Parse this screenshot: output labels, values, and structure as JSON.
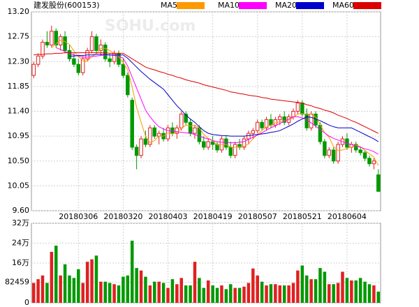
{
  "chart_data": {
    "type": "candlestick",
    "title": "建发股份(600153)",
    "watermark": "SOHU.com",
    "categories": [
      null,
      null,
      null,
      null,
      null,
      null,
      null,
      null,
      null,
      null,
      "20180306",
      null,
      null,
      null,
      null,
      null,
      null,
      null,
      null,
      null,
      "20180320",
      null,
      null,
      null,
      null,
      null,
      null,
      null,
      null,
      null,
      "20180403",
      null,
      null,
      null,
      null,
      null,
      null,
      null,
      null,
      null,
      "20180419",
      null,
      null,
      null,
      null,
      null,
      null,
      null,
      null,
      null,
      "20180507",
      null,
      null,
      null,
      null,
      null,
      null,
      null,
      null,
      null,
      "20180521",
      null,
      null,
      null,
      null,
      null,
      null,
      null,
      null,
      null,
      "20180604",
      null,
      null,
      null,
      null,
      null,
      null,
      null
    ],
    "open": [
      12.05,
      12.25,
      12.4,
      12.65,
      12.6,
      12.85,
      12.6,
      12.75,
      12.5,
      12.35,
      12.25,
      12.1,
      12.35,
      12.5,
      12.75,
      12.5,
      12.6,
      12.35,
      12.3,
      12.45,
      12.25,
      12.05,
      11.6,
      10.75,
      10.6,
      10.9,
      10.8,
      11.1,
      10.95,
      11.0,
      10.9,
      11.1,
      11.0,
      11.1,
      11.35,
      11.2,
      11.0,
      11.1,
      10.85,
      10.75,
      10.85,
      10.8,
      10.7,
      10.9,
      10.75,
      10.6,
      10.8,
      10.75,
      10.9,
      11.0,
      11.05,
      11.2,
      11.1,
      11.25,
      11.15,
      11.25,
      11.3,
      11.2,
      11.3,
      11.4,
      11.55,
      11.35,
      11.1,
      11.35,
      11.15,
      10.85,
      10.6,
      10.7,
      10.5,
      10.8,
      10.9,
      10.75,
      10.8,
      10.7,
      10.65,
      10.55,
      10.45,
      10.25
    ],
    "high": [
      12.3,
      12.45,
      12.7,
      12.85,
      12.95,
      12.9,
      12.8,
      12.85,
      12.6,
      12.45,
      12.35,
      12.4,
      12.55,
      12.85,
      12.8,
      12.7,
      12.65,
      12.45,
      12.5,
      12.5,
      12.35,
      12.1,
      11.65,
      10.8,
      10.95,
      11.05,
      11.15,
      11.15,
      11.05,
      11.1,
      11.15,
      11.2,
      11.15,
      11.4,
      11.4,
      11.25,
      11.15,
      11.15,
      10.95,
      10.9,
      10.95,
      10.85,
      10.95,
      10.95,
      10.85,
      10.85,
      10.9,
      10.95,
      11.05,
      11.1,
      11.25,
      11.25,
      11.3,
      11.35,
      11.3,
      11.35,
      11.4,
      11.35,
      11.45,
      11.6,
      11.6,
      11.45,
      11.4,
      11.4,
      11.2,
      10.9,
      10.75,
      10.75,
      10.85,
      10.95,
      11.0,
      10.85,
      10.85,
      10.75,
      10.7,
      10.6,
      10.55,
      10.35
    ],
    "low": [
      12.0,
      12.2,
      12.35,
      12.55,
      12.55,
      12.55,
      12.5,
      12.45,
      12.3,
      12.2,
      12.05,
      12.05,
      12.3,
      12.45,
      12.45,
      12.4,
      12.3,
      12.2,
      12.25,
      12.2,
      12.0,
      11.65,
      10.7,
      10.35,
      10.55,
      10.75,
      10.75,
      10.9,
      10.8,
      10.85,
      10.85,
      10.95,
      10.9,
      11.05,
      11.15,
      10.95,
      10.9,
      10.8,
      10.7,
      10.7,
      10.7,
      10.65,
      10.65,
      10.7,
      10.55,
      10.55,
      10.7,
      10.7,
      10.8,
      10.9,
      11.0,
      11.05,
      11.05,
      11.1,
      11.1,
      11.15,
      11.15,
      11.15,
      11.25,
      11.35,
      11.3,
      11.05,
      11.05,
      11.1,
      10.8,
      10.55,
      10.55,
      10.45,
      10.45,
      10.75,
      10.7,
      10.65,
      10.65,
      10.6,
      10.5,
      10.4,
      10.35,
      9.95
    ],
    "close": [
      12.25,
      12.4,
      12.65,
      12.6,
      12.85,
      12.6,
      12.75,
      12.5,
      12.35,
      12.25,
      12.1,
      12.35,
      12.5,
      12.75,
      12.5,
      12.6,
      12.35,
      12.3,
      12.45,
      12.25,
      12.05,
      11.7,
      10.75,
      10.6,
      10.9,
      10.8,
      11.1,
      10.95,
      11.0,
      10.9,
      11.1,
      11.0,
      11.1,
      11.35,
      11.2,
      11.0,
      11.1,
      10.85,
      10.75,
      10.85,
      10.8,
      10.7,
      10.9,
      10.75,
      10.6,
      10.8,
      10.75,
      10.9,
      11.0,
      11.05,
      11.2,
      11.1,
      11.25,
      11.15,
      11.25,
      11.3,
      11.2,
      11.3,
      11.4,
      11.55,
      11.35,
      11.1,
      11.35,
      11.15,
      10.85,
      10.6,
      10.7,
      10.5,
      10.8,
      10.9,
      10.75,
      10.8,
      10.7,
      10.65,
      10.55,
      10.45,
      10.5,
      9.95
    ],
    "up_color": "#e02020",
    "down_color": "#009900",
    "series": [
      {
        "name": "MA5",
        "color": "#ff9900",
        "values": [
          null,
          null,
          null,
          null,
          12.55,
          12.62,
          12.69,
          12.66,
          12.61,
          12.49,
          12.39,
          12.31,
          12.31,
          12.39,
          12.44,
          12.54,
          12.54,
          12.5,
          12.44,
          12.39,
          12.28,
          12.15,
          11.84,
          11.47,
          11.2,
          10.95,
          10.83,
          10.87,
          10.95,
          10.95,
          11.01,
          10.99,
          11.02,
          11.09,
          11.15,
          11.13,
          11.15,
          11.1,
          10.98,
          10.91,
          10.87,
          10.79,
          10.8,
          10.8,
          10.75,
          10.75,
          10.76,
          10.76,
          10.81,
          10.9,
          10.98,
          11.05,
          11.12,
          11.15,
          11.19,
          11.21,
          11.23,
          11.24,
          11.29,
          11.35,
          11.36,
          11.34,
          11.35,
          11.3,
          11.16,
          11.01,
          10.93,
          10.76,
          10.69,
          10.7,
          10.73,
          10.75,
          10.79,
          10.76,
          10.69,
          10.63,
          10.57,
          10.42
        ]
      },
      {
        "name": "MA10",
        "color": "#ff00ff",
        "values": [
          null,
          null,
          null,
          null,
          null,
          12.55,
          12.52,
          12.48,
          12.45,
          12.42,
          12.4,
          12.38,
          12.38,
          12.39,
          12.4,
          12.41,
          12.42,
          12.42,
          12.41,
          12.4,
          12.36,
          12.22,
          12.02,
          11.82,
          11.62,
          11.42,
          11.3,
          11.2,
          11.12,
          11.08,
          11.05,
          11.04,
          11.03,
          11.02,
          11.01,
          11.0,
          10.98,
          10.95,
          10.92,
          10.9,
          10.87,
          10.85,
          10.84,
          10.84,
          10.83,
          10.83,
          10.84,
          10.85,
          10.89,
          10.93,
          10.97,
          11.01,
          11.06,
          11.1,
          11.14,
          11.18,
          11.22,
          11.26,
          11.3,
          11.3,
          11.28,
          11.25,
          11.19,
          11.13,
          11.07,
          11.01,
          10.95,
          10.91,
          10.88,
          10.85,
          10.82,
          10.8,
          10.77,
          10.75,
          10.72,
          10.7,
          10.67,
          10.62
        ]
      },
      {
        "name": "MA20",
        "color": "#0000cc",
        "values": [
          null,
          null,
          null,
          null,
          null,
          null,
          null,
          null,
          12.4,
          12.4,
          12.41,
          12.41,
          12.42,
          12.42,
          12.43,
          12.43,
          12.43,
          12.42,
          12.42,
          12.42,
          12.42,
          12.36,
          12.28,
          12.2,
          12.12,
          12.05,
          11.98,
          11.92,
          11.86,
          11.8,
          11.7,
          11.6,
          11.5,
          11.42,
          11.33,
          11.26,
          11.2,
          11.12,
          11.05,
          11.0,
          10.98,
          10.97,
          10.96,
          10.96,
          10.95,
          10.95,
          10.95,
          10.95,
          10.96,
          10.97,
          10.98,
          10.99,
          11.0,
          11.02,
          11.03,
          11.05,
          11.09,
          11.13,
          11.17,
          11.22,
          11.26,
          11.3,
          11.29,
          11.26,
          11.23,
          11.19,
          11.15,
          11.12,
          11.1,
          11.1,
          11.1,
          11.1,
          11.06,
          11.02,
          10.98,
          10.94,
          10.9,
          10.85
        ]
      },
      {
        "name": "MA60",
        "color": "#dd0000",
        "values": [
          12.42,
          12.43,
          12.43,
          12.44,
          12.44,
          12.45,
          12.45,
          12.46,
          12.46,
          12.46,
          12.46,
          12.46,
          12.46,
          12.46,
          12.46,
          12.46,
          12.46,
          12.45,
          12.45,
          12.45,
          12.45,
          12.4,
          12.35,
          12.3,
          12.25,
          12.2,
          12.17,
          12.15,
          12.12,
          12.1,
          12.07,
          12.05,
          12.02,
          12.0,
          11.97,
          11.95,
          11.93,
          11.91,
          11.88,
          11.86,
          11.84,
          11.82,
          11.8,
          11.78,
          11.75,
          11.74,
          11.72,
          11.71,
          11.69,
          11.68,
          11.67,
          11.65,
          11.64,
          11.62,
          11.61,
          11.6,
          11.59,
          11.58,
          11.57,
          11.56,
          11.55,
          11.52,
          11.5,
          11.47,
          11.45,
          11.42,
          11.4,
          11.37,
          11.33,
          11.3,
          11.27,
          11.23,
          11.2,
          11.16,
          11.12,
          11.08,
          11.04,
          11.0
        ]
      }
    ],
    "ylim": [
      9.6,
      13.2
    ],
    "yticks": [
      {
        "value": 13.2,
        "label": "13.20"
      },
      12.75,
      {
        "value": 12.3,
        "label": "12.30"
      },
      11.85,
      {
        "value": 11.4,
        "label": "11.40"
      },
      10.95,
      {
        "value": 10.5,
        "label": "10.50"
      },
      10.05,
      {
        "value": 9.6,
        "label": "9.60"
      }
    ],
    "grid": true,
    "volume": {
      "values": [
        80000,
        95000,
        110000,
        80000,
        205000,
        230000,
        110000,
        155000,
        110000,
        100000,
        135000,
        80000,
        165000,
        175000,
        190000,
        85000,
        85000,
        80000,
        75000,
        70000,
        105000,
        110000,
        250000,
        140000,
        130000,
        105000,
        70000,
        85000,
        85000,
        80000,
        60000,
        95000,
        75000,
        100000,
        70000,
        70000,
        165000,
        100000,
        60000,
        90000,
        70000,
        60000,
        70000,
        55000,
        75000,
        60000,
        60000,
        65000,
        80000,
        138000,
        110000,
        85000,
        70000,
        75000,
        75000,
        70000,
        70000,
        70000,
        80000,
        130000,
        150000,
        110000,
        95000,
        95000,
        140000,
        125000,
        75000,
        75000,
        80000,
        125000,
        100000,
        90000,
        90000,
        100000,
        85000,
        75000,
        70000,
        45000
      ],
      "ylim": [
        0,
        320000
      ],
      "yticks": [
        0,
        82459,
        {
          "value": 160000,
          "label": "16万"
        },
        {
          "value": 240000,
          "label": "24万"
        },
        {
          "value": 320000,
          "label": "32万"
        }
      ]
    }
  }
}
